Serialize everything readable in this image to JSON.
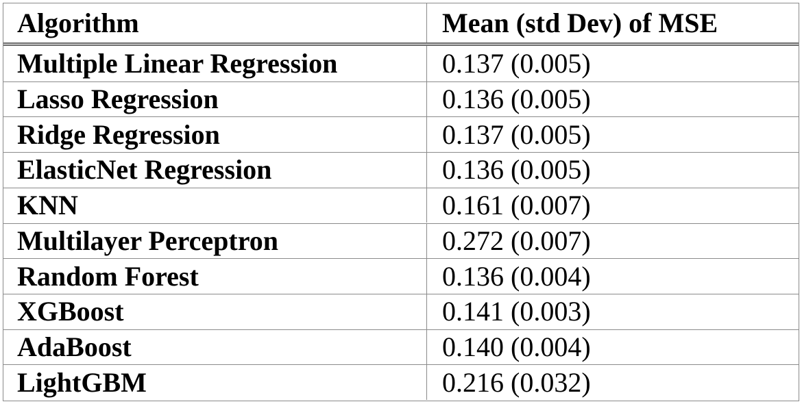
{
  "table": {
    "header": [
      "Algorithm",
      "Mean (std Dev) of MSE"
    ],
    "rows": [
      [
        "Multiple Linear Regression",
        "0.137 (0.005)"
      ],
      [
        "Lasso Regression",
        "0.136 (0.005)"
      ],
      [
        "Ridge Regression",
        "0.137 (0.005)"
      ],
      [
        "ElasticNet Regression",
        "0.136 (0.005)"
      ],
      [
        "KNN",
        "0.161 (0.007)"
      ],
      [
        "Multilayer Perceptron",
        "0.272 (0.007)"
      ],
      [
        "Random Forest",
        "0.136 (0.004)"
      ],
      [
        "XGBoost",
        "0.141 (0.003)"
      ],
      [
        "AdaBoost",
        "0.140 (0.004)"
      ],
      [
        "LightGBM",
        "0.216 (0.032)"
      ]
    ]
  }
}
